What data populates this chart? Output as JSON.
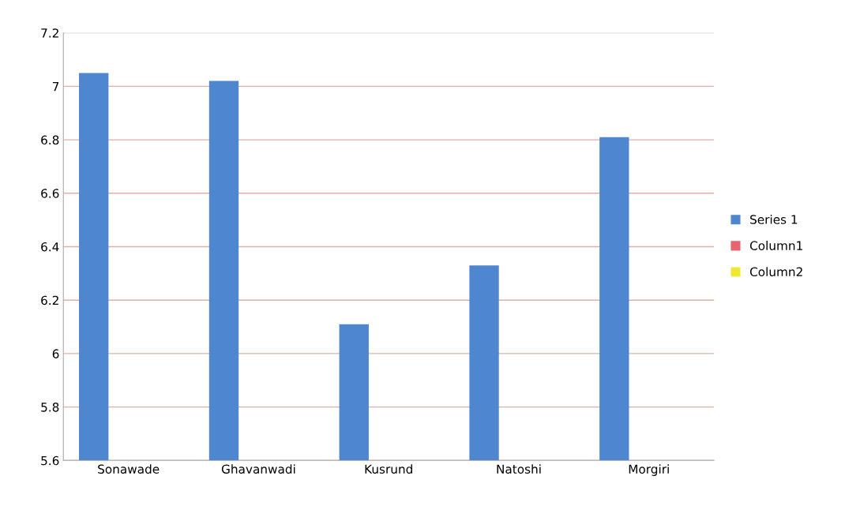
{
  "chart_data": {
    "type": "bar",
    "categories": [
      "Sonawade",
      "Ghavanwadi",
      "Kusrund",
      "Natoshi",
      "Morgiri"
    ],
    "series": [
      {
        "name": "Series 1",
        "color": "#4f86d0",
        "values": [
          7.05,
          7.02,
          6.11,
          6.33,
          6.81
        ]
      },
      {
        "name": "Column1",
        "color": "#e8636e",
        "values": [
          null,
          null,
          null,
          null,
          null
        ]
      },
      {
        "name": "Column2",
        "color": "#f0e830",
        "values": [
          null,
          null,
          null,
          null,
          null
        ]
      }
    ],
    "ylim": [
      5.6,
      7.2
    ],
    "yticks": [
      5.6,
      5.8,
      6,
      6.2,
      6.4,
      6.6,
      6.8,
      7,
      7.2
    ],
    "grid": "y",
    "legend": "right"
  }
}
